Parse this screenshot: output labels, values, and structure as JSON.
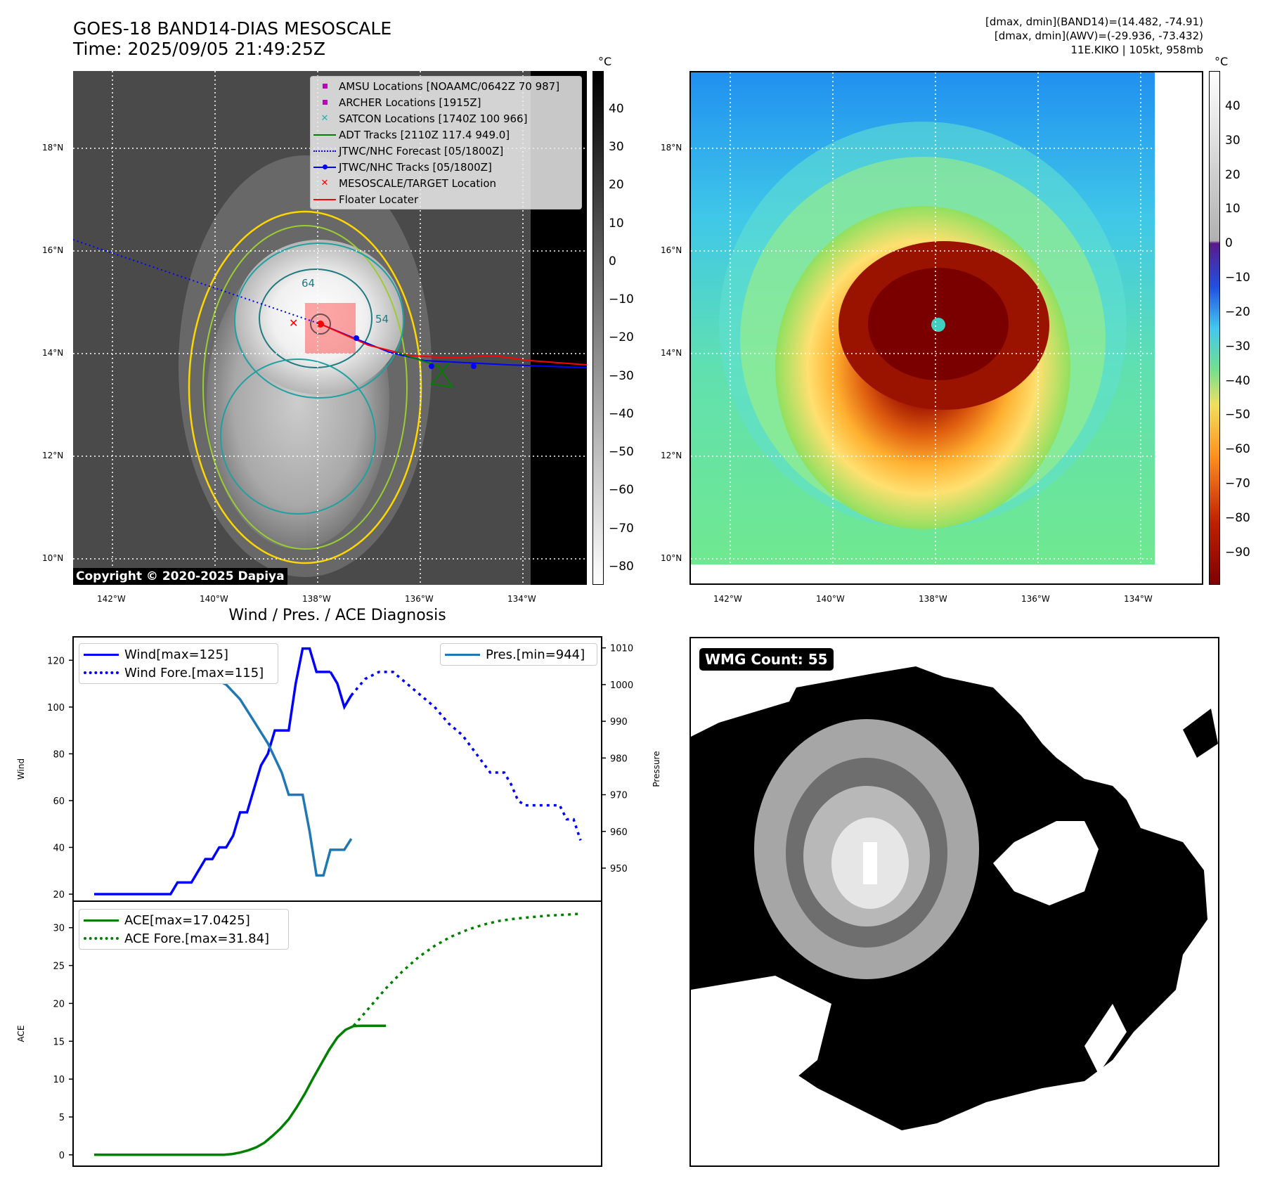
{
  "header": {
    "title_line1": "GOES-18 BAND14-DIAS MESOSCALE",
    "title_line2": "Time: 2025/09/05 21:49:25Z",
    "info_line1": "[dmax, dmin](BAND14)=(14.482, -74.91)",
    "info_line2": "[dmax, dmin](AWV)=(-29.936, -73.432)",
    "info_line3": "11E.KIKO | 105kt, 958mb"
  },
  "map": {
    "lat_labels": [
      "18°N",
      "16°N",
      "14°N",
      "12°N",
      "10°N"
    ],
    "lon_labels": [
      "142°W",
      "140°W",
      "138°W",
      "136°W",
      "134°W"
    ],
    "copyright": "Copyright © 2020-2025 Dapiya",
    "contour_labels": [
      "64",
      "54"
    ],
    "legend": [
      {
        "label": "AMSU Locations [NOAAMC/0642Z 70 987]",
        "color": "#c000c0",
        "symbol": "square"
      },
      {
        "label": "ARCHER Locations [1915Z]",
        "color": "#c000c0",
        "symbol": "square"
      },
      {
        "label": "SATCON Locations [1740Z 100 966]",
        "color": "#20b2aa",
        "symbol": "x"
      },
      {
        "label": "ADT Tracks [2110Z 117.4 949.0]",
        "color": "#008000",
        "symbol": "line"
      },
      {
        "label": "JTWC/NHC Forecast [05/1800Z]",
        "color": "#0000ff",
        "symbol": "dotted"
      },
      {
        "label": "JTWC/NHC Tracks [05/1800Z]",
        "color": "#0000ff",
        "symbol": "line-dot"
      },
      {
        "label": "MESOSCALE/TARGET Location",
        "color": "#ff0000",
        "symbol": "x"
      },
      {
        "label": "Floater Locater",
        "color": "#ff0000",
        "symbol": "line"
      }
    ]
  },
  "colorbars": {
    "unit": "°C",
    "left_ticks": [
      "40",
      "30",
      "20",
      "10",
      "0",
      "−10",
      "−20",
      "−30",
      "−40",
      "−50",
      "−60",
      "−70",
      "−80"
    ],
    "right_ticks": [
      "40",
      "30",
      "20",
      "10",
      "0",
      "−10",
      "−20",
      "−30",
      "−40",
      "−50",
      "−60",
      "−70",
      "−80",
      "−90"
    ]
  },
  "wmg": {
    "badge": "WMG Count: 55"
  },
  "chart_data": [
    {
      "type": "line",
      "title": "Wind / Pres. / ACE Diagnosis",
      "ylabel": "Wind",
      "ylabel_right": "Pressure",
      "ylim": [
        17,
        130
      ],
      "ylim_right": [
        941,
        1013
      ],
      "yticks": [
        20,
        40,
        60,
        80,
        100,
        120
      ],
      "yticks_right": [
        950,
        960,
        970,
        980,
        990,
        1000,
        1010
      ],
      "series": [
        {
          "name": "Wind[max=125]",
          "color": "#0000ff",
          "style": "solid",
          "x": [
            0,
            4,
            8,
            10,
            12,
            14,
            16,
            18,
            20,
            22,
            24,
            26,
            28,
            30,
            32,
            34,
            36,
            38,
            40,
            42,
            44,
            46,
            48,
            50,
            52,
            54,
            56,
            58,
            60,
            62,
            64,
            66,
            68
          ],
          "values": [
            20,
            20,
            20,
            20,
            20,
            20,
            20,
            20,
            20,
            20,
            25,
            25,
            25,
            30,
            35,
            35,
            40,
            40,
            45,
            55,
            55,
            65,
            75,
            80,
            90,
            90,
            90,
            110,
            125,
            125,
            115,
            115,
            115
          ]
        },
        {
          "name": "Wind_tail",
          "color": "#0000ff",
          "style": "solid",
          "legend": false,
          "x": [
            68,
            70,
            72,
            74
          ],
          "values": [
            115,
            110,
            100,
            105
          ]
        },
        {
          "name": "Wind Fore.[max=115]",
          "color": "#0000ff",
          "style": "dotted",
          "x": [
            74,
            78,
            82,
            86,
            90,
            94,
            98,
            102,
            106,
            110,
            114,
            116,
            118,
            120,
            122,
            124,
            126,
            128,
            130,
            132,
            134,
            136,
            138,
            140
          ],
          "values": [
            105,
            112,
            115,
            115,
            110,
            105,
            100,
            93,
            88,
            80,
            72,
            72,
            72,
            67,
            60,
            58,
            58,
            58,
            58,
            58,
            58,
            52,
            52,
            43
          ]
        },
        {
          "name": "Pres.[min=944]",
          "color": "#1f77b4",
          "style": "solid",
          "axis": "right",
          "x": [
            0,
            4,
            8,
            10,
            12,
            14,
            16,
            18,
            20,
            22,
            24,
            26,
            28,
            30,
            32,
            34,
            36,
            38,
            40,
            42,
            44,
            46,
            48,
            50,
            52,
            54,
            56,
            58,
            60,
            62,
            64,
            66,
            68,
            70,
            72,
            74
          ],
          "values": [
            1010,
            1010,
            1010,
            1010,
            1010,
            1010,
            1010,
            1010,
            1010,
            1010,
            1009,
            1008,
            1007,
            1006,
            1005,
            1003,
            1001,
            1000,
            998,
            996,
            993,
            990,
            987,
            984,
            980,
            976,
            970,
            970,
            970,
            960,
            948,
            948,
            955,
            955,
            955,
            958
          ]
        }
      ]
    },
    {
      "type": "line",
      "ylabel": "ACE",
      "ylim": [
        -1.5,
        33.5
      ],
      "yticks": [
        0,
        5,
        10,
        15,
        20,
        25,
        30
      ],
      "series": [
        {
          "name": "ACE[max=17.0425]",
          "color": "#008000",
          "style": "solid",
          "x": [
            0,
            10,
            20,
            30,
            40,
            45,
            50,
            55,
            60,
            65,
            70,
            75,
            80,
            85,
            90,
            95,
            100,
            105,
            110,
            115,
            120,
            125,
            130,
            135,
            140,
            145,
            150,
            155,
            160,
            165,
            170,
            175,
            180
          ],
          "values": [
            0,
            0,
            0,
            0,
            0,
            0,
            0,
            0,
            0,
            0,
            0,
            0,
            0,
            0.1,
            0.3,
            0.6,
            1.0,
            1.6,
            2.5,
            3.5,
            4.7,
            6.3,
            8.1,
            10.1,
            12.0,
            13.9,
            15.5,
            16.5,
            17.0,
            17.04,
            17.04,
            17.04,
            17.04
          ]
        },
        {
          "name": "ACE Fore.[max=31.84]",
          "color": "#008000",
          "style": "dotted",
          "x": [
            160,
            170,
            180,
            190,
            200,
            210,
            220,
            230,
            240,
            250,
            260,
            270,
            280,
            290,
            300
          ],
          "values": [
            17.04,
            19.5,
            22.0,
            24.2,
            26.1,
            27.6,
            28.8,
            29.7,
            30.4,
            30.9,
            31.2,
            31.4,
            31.6,
            31.7,
            31.84
          ]
        }
      ]
    }
  ]
}
